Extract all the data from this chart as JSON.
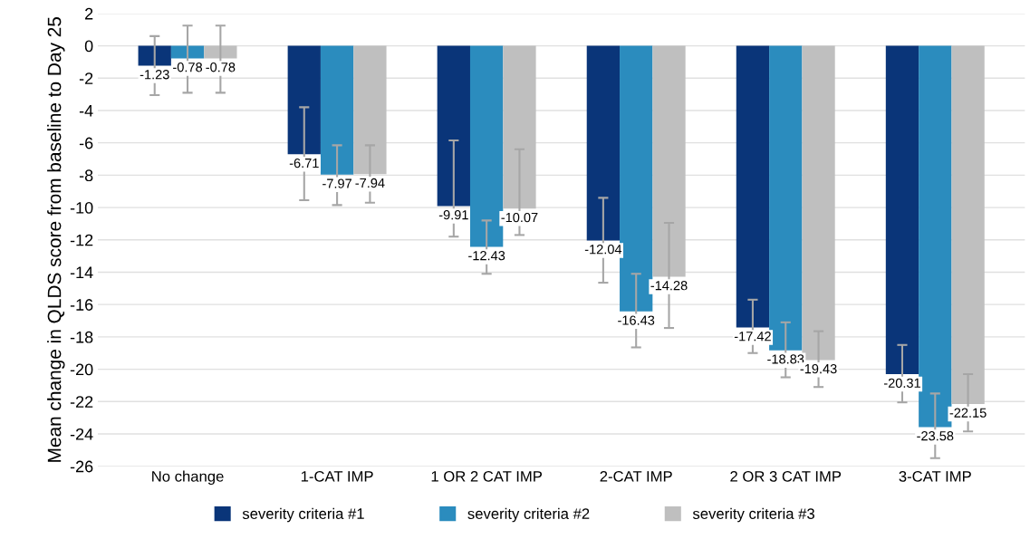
{
  "chart_data": {
    "type": "bar",
    "ylabel": "Mean change in QLDS score from baseline to Day 25",
    "categories": [
      "No change",
      "1-CAT IMP",
      "1 OR 2 CAT IMP",
      "2-CAT IMP",
      "2 OR 3 CAT IMP",
      "3-CAT IMP"
    ],
    "series": [
      {
        "name": "severity criteria #1",
        "color": "#0a3579",
        "values": [
          -1.23,
          -6.71,
          -9.91,
          -12.04,
          -17.42,
          -20.31
        ],
        "errors": [
          [
            -3.05,
            0.6
          ],
          [
            -9.55,
            -3.8
          ],
          [
            -11.8,
            -5.85
          ],
          [
            -14.65,
            -9.4
          ],
          [
            -19.0,
            -15.7
          ],
          [
            -22.05,
            -18.5
          ]
        ]
      },
      {
        "name": "severity criteria #2",
        "color": "#2b8cbe",
        "values": [
          -0.78,
          -7.97,
          -12.43,
          -16.43,
          -18.83,
          -23.58
        ],
        "errors": [
          [
            -2.9,
            1.25
          ],
          [
            -9.85,
            -6.15
          ],
          [
            -14.1,
            -10.8
          ],
          [
            -18.65,
            -14.1
          ],
          [
            -20.5,
            -17.1
          ],
          [
            -25.5,
            -21.5
          ]
        ]
      },
      {
        "name": "severity criteria #3",
        "color": "#bfbfbf",
        "values": [
          -0.78,
          -7.94,
          -10.07,
          -14.28,
          -19.43,
          -22.15
        ],
        "errors": [
          [
            -2.9,
            1.25
          ],
          [
            -9.7,
            -6.15
          ],
          [
            -11.7,
            -6.4
          ],
          [
            -17.45,
            -10.95
          ],
          [
            -21.1,
            -17.65
          ],
          [
            -23.85,
            -20.3
          ]
        ]
      }
    ],
    "ylim": [
      -26,
      2
    ],
    "yticks": [
      2,
      0,
      -2,
      -4,
      -6,
      -8,
      -10,
      -12,
      -14,
      -16,
      -18,
      -20,
      -22,
      -24,
      -26
    ],
    "data_labels": true,
    "grid": "y",
    "legend": "bottom"
  }
}
